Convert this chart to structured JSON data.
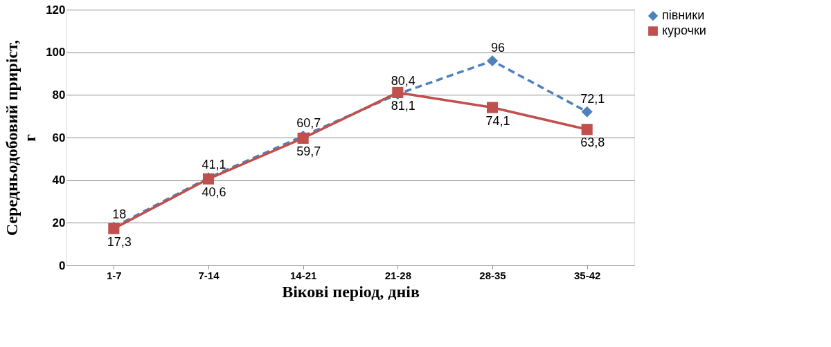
{
  "chart_data": {
    "type": "line",
    "xlabel": "Вікові період, днів",
    "ylabel": "Середньодобовий  приріст, г",
    "categories": [
      "1-7",
      "7-14",
      "14-21",
      "21-28",
      "28-35",
      "35-42"
    ],
    "series": [
      {
        "name": "півники",
        "color": "#4f81bd",
        "marker": "diamond",
        "line_style": "dashed",
        "values": [
          18,
          41.1,
          60.7,
          80.4,
          96,
          72.1
        ],
        "value_labels": [
          "18",
          "41,1",
          "60,7",
          "80,4",
          "96",
          "72,1"
        ]
      },
      {
        "name": "курочки",
        "color": "#c0504d",
        "marker": "square",
        "line_style": "solid",
        "values": [
          17.3,
          40.6,
          59.7,
          81.1,
          74.1,
          63.8
        ],
        "value_labels": [
          "17,3",
          "40,6",
          "59,7",
          "81,1",
          "74,1",
          "63,8"
        ]
      }
    ],
    "ylim": [
      0,
      120
    ],
    "yticks": [
      0,
      20,
      40,
      60,
      80,
      100,
      120
    ],
    "grid": "y",
    "legend": "right"
  }
}
